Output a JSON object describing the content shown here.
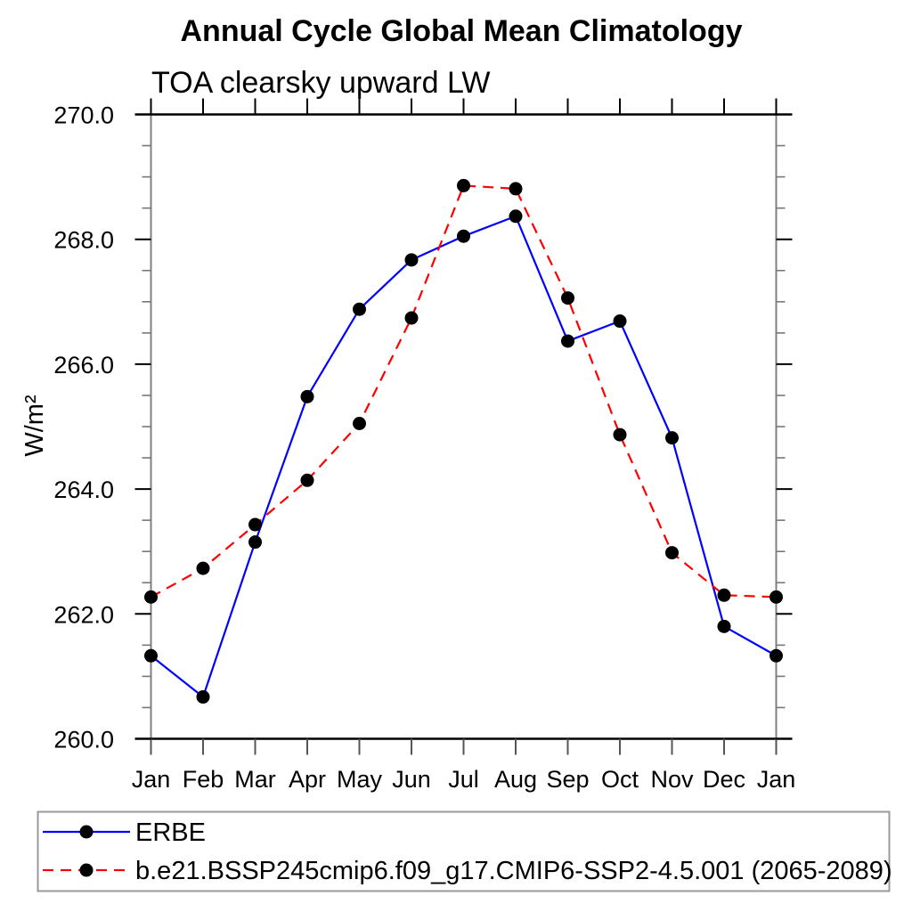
{
  "chart_data": {
    "type": "line",
    "title": "Annual Cycle Global Mean Climatology",
    "subtitle": "TOA clearsky upward LW",
    "ylabel": "W/m²",
    "xlabel": "",
    "categories": [
      "Jan",
      "Feb",
      "Mar",
      "Apr",
      "May",
      "Jun",
      "Jul",
      "Aug",
      "Sep",
      "Oct",
      "Nov",
      "Dec",
      "Jan"
    ],
    "ylim": [
      260.0,
      270.0
    ],
    "ytick_interval": 2.0,
    "ytick_minor_interval": 0.5,
    "ytick_labels": [
      "260.0",
      "262.0",
      "264.0",
      "266.0",
      "268.0",
      "270.0"
    ],
    "grid": "off",
    "legend_position": "bottom",
    "series": [
      {
        "name": "ERBE",
        "color": "#0000ff",
        "line_style": "solid",
        "marker": "circle",
        "marker_color": "#000000",
        "values": [
          261.33,
          260.67,
          263.15,
          265.48,
          266.88,
          267.67,
          268.05,
          268.37,
          266.37,
          266.69,
          264.82,
          261.8,
          261.33
        ]
      },
      {
        "name": "b.e21.BSSP245cmip6.f09_g17.CMIP6-SSP2-4.5.001 (2065-2089)",
        "color": "#ff0000",
        "line_style": "dashed",
        "marker": "circle",
        "marker_color": "#000000",
        "values": [
          262.27,
          262.73,
          263.43,
          264.14,
          265.05,
          266.74,
          268.86,
          268.81,
          267.06,
          264.87,
          262.98,
          262.3,
          262.27
        ]
      }
    ]
  }
}
